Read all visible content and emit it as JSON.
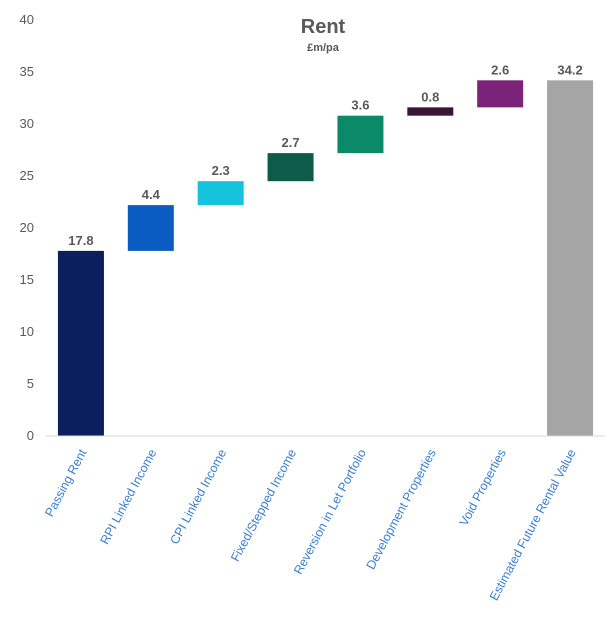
{
  "chart_data": {
    "type": "bar",
    "subtype": "waterfall",
    "title": "Rent",
    "subtitle": "£m/pa",
    "xlabel": "",
    "ylabel": "",
    "ylim": [
      0,
      40
    ],
    "yticks": [
      0,
      5,
      10,
      15,
      20,
      25,
      30,
      35,
      40
    ],
    "grid": false,
    "legend": "none",
    "categories": [
      "Passing Rent",
      "RPI Linked Income",
      "CPI Linked Income",
      "Fixed/Stepped Income",
      "Reversion in Let Portfolio",
      "Development Properties",
      "Void Properties",
      "Estimated Future Rental Value"
    ],
    "values": [
      17.8,
      4.4,
      2.3,
      2.7,
      3.6,
      0.8,
      2.6,
      34.2
    ],
    "value_labels": [
      "17.8",
      "4.4",
      "2.3",
      "2.7",
      "3.6",
      "0.8",
      "2.6",
      "34.2"
    ],
    "bar_kind": [
      "total",
      "delta",
      "delta",
      "delta",
      "delta",
      "delta",
      "delta",
      "total"
    ],
    "colors": [
      "#0b1f5c",
      "#0a5bc2",
      "#15c3dc",
      "#0d5b48",
      "#0b8a6a",
      "#3a1535",
      "#7b2378",
      "#a5a5a5"
    ],
    "label_color": "#595959",
    "tick_label_color": "#3a7fd0",
    "axis_color": "#d9d9d9"
  }
}
